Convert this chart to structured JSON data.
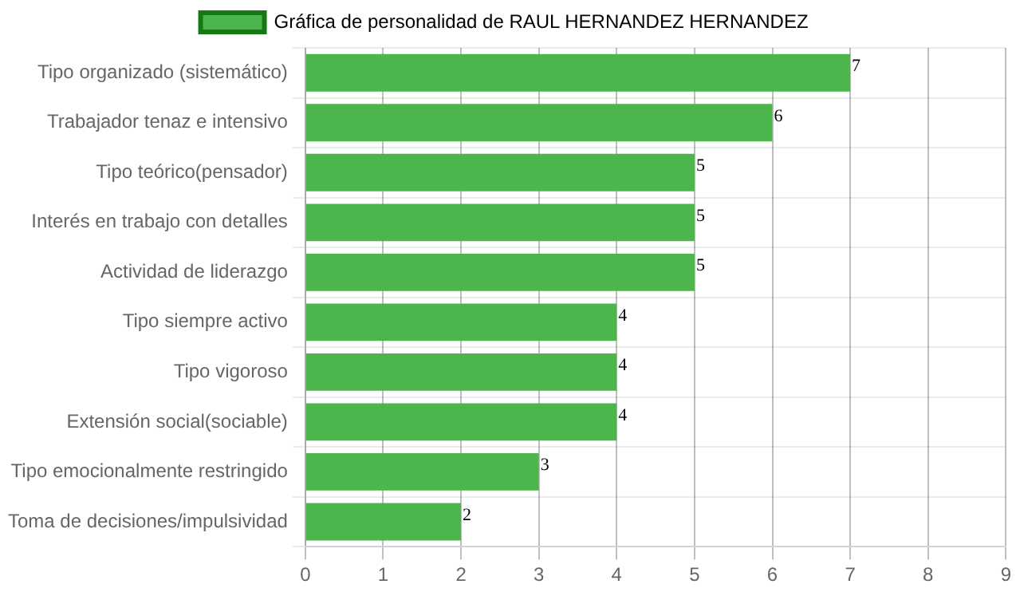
{
  "chart_data": {
    "type": "bar",
    "orientation": "horizontal",
    "categories": [
      "Tipo organizado (sistemático)",
      "Trabajador tenaz e intensivo",
      "Tipo teórico(pensador)",
      "Interés en trabajo con detalles",
      "Actividad de liderazgo",
      "Tipo siempre activo",
      "Tipo vigoroso",
      "Extensión social(sociable)",
      "Tipo emocionalmente restringido",
      "Toma de decisiones/impulsividad"
    ],
    "series": [
      {
        "name": "Gráfica de personalidad de RAUL HERNANDEZ HERNANDEZ",
        "color": "#4cb54c",
        "values": [
          7,
          6,
          5,
          5,
          5,
          4,
          4,
          4,
          3,
          2
        ]
      }
    ],
    "xlim": [
      0,
      9
    ],
    "xticks": [
      0,
      1,
      2,
      3,
      4,
      5,
      6,
      7,
      8,
      9
    ],
    "grid": true,
    "legend": "top",
    "data_labels": true
  }
}
